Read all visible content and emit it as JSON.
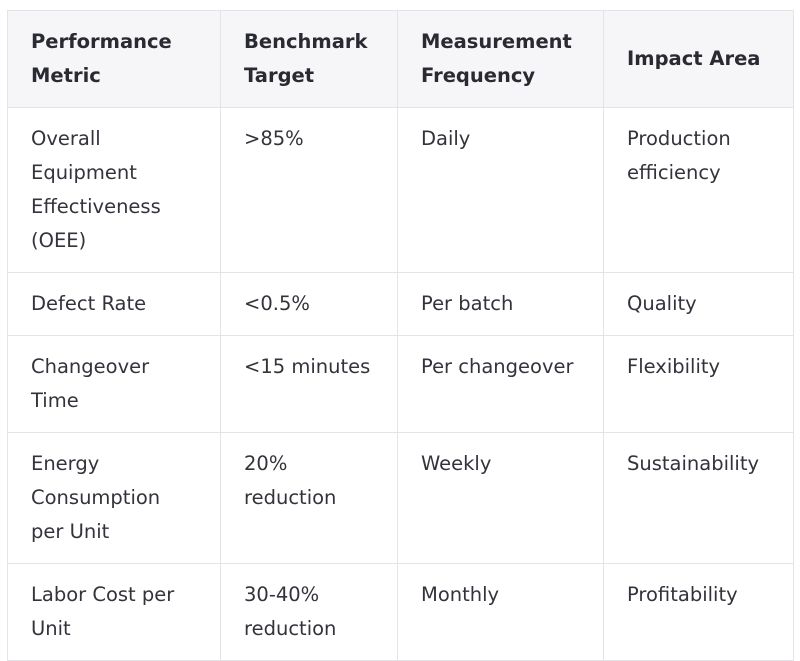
{
  "table": {
    "headers": [
      "Performance Metric",
      "Benchmark Target",
      "Measurement Frequency",
      "Impact Area"
    ],
    "rows": [
      [
        "Overall Equipment Effectiveness (OEE)",
        ">85%",
        "Daily",
        "Production efficiency"
      ],
      [
        "Defect Rate",
        "<0.5%",
        "Per batch",
        "Quality"
      ],
      [
        "Changeover Time",
        "<15 minutes",
        "Per changeover",
        "Flexibility"
      ],
      [
        "Energy Consumption per Unit",
        "20% reduction",
        "Weekly",
        "Sustainability"
      ],
      [
        "Labor Cost per Unit",
        "30-40% reduction",
        "Monthly",
        "Profitability"
      ]
    ]
  }
}
